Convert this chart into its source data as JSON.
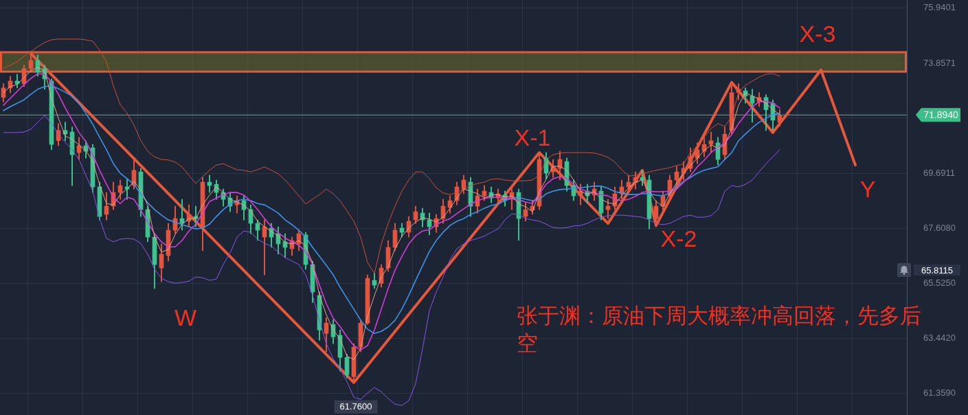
{
  "chart_data": {
    "type": "candlestick",
    "categories": [
      null,
      null,
      null,
      null,
      null,
      null,
      null,
      null,
      null,
      null,
      null,
      null,
      null,
      null,
      null,
      null,
      null,
      null,
      null,
      null,
      null,
      null,
      null,
      null,
      null,
      null,
      null,
      null,
      null,
      null,
      null,
      null,
      null,
      null,
      null,
      null,
      null,
      null,
      null,
      null,
      null,
      null,
      null,
      null,
      null,
      null,
      null,
      null,
      null,
      null,
      null,
      null,
      null,
      null,
      null,
      null,
      null,
      null,
      null,
      null,
      null,
      null,
      null,
      null,
      null,
      null,
      null,
      null,
      null,
      null,
      null,
      null,
      null,
      null,
      null,
      null,
      null,
      null,
      null,
      null,
      null,
      null,
      null,
      null,
      null,
      null,
      null,
      null,
      null,
      null,
      null,
      null,
      null,
      null,
      null,
      null,
      null,
      null,
      null,
      null,
      null,
      null,
      null,
      null,
      null,
      null,
      null,
      null,
      null,
      null,
      null,
      null,
      null,
      null,
      null,
      null,
      null,
      null,
      null,
      null,
      null,
      null,
      null,
      null,
      null,
      null,
      null,
      null,
      null,
      null,
      null,
      null
    ],
    "ohlc": [
      [
        72.56,
        73.08,
        72.39,
        72.92
      ],
      [
        72.92,
        73.36,
        72.74,
        73.18
      ],
      [
        73.18,
        73.44,
        72.92,
        73.08
      ],
      [
        73.08,
        73.78,
        72.97,
        73.65
      ],
      [
        73.65,
        74.22,
        73.52,
        73.96
      ],
      [
        73.96,
        74.17,
        73.36,
        73.52
      ],
      [
        73.65,
        73.78,
        72.87,
        73.26
      ],
      [
        73.18,
        73.26,
        70.58,
        70.78
      ],
      [
        70.92,
        71.57,
        70.73,
        71.31
      ],
      [
        71.31,
        71.62,
        70.92,
        71.17
      ],
      [
        71.25,
        71.44,
        69.22,
        70.39
      ],
      [
        70.47,
        71.05,
        70.21,
        70.73
      ],
      [
        70.73,
        70.92,
        70.26,
        70.52
      ],
      [
        70.65,
        70.78,
        68.96,
        69.17
      ],
      [
        69.17,
        69.35,
        67.92,
        68.05
      ],
      [
        68.13,
        68.96,
        67.92,
        68.44
      ],
      [
        68.44,
        69.35,
        68.31,
        68.96
      ],
      [
        68.96,
        69.43,
        68.7,
        69.22
      ],
      [
        69.17,
        69.48,
        68.7,
        69.09
      ],
      [
        69.22,
        70.18,
        69.09,
        69.8
      ],
      [
        69.74,
        69.87,
        68.05,
        68.31
      ],
      [
        68.31,
        68.44,
        67.09,
        67.27
      ],
      [
        67.27,
        67.4,
        65.32,
        66.23
      ],
      [
        66.1,
        67.01,
        65.58,
        66.62
      ],
      [
        66.57,
        67.79,
        66.36,
        67.53
      ],
      [
        67.53,
        68.44,
        67.4,
        67.97
      ],
      [
        67.97,
        68.7,
        67.53,
        67.79
      ],
      [
        67.87,
        68.49,
        67.66,
        68.13
      ],
      [
        68.05,
        68.44,
        67.66,
        67.97
      ],
      [
        67.66,
        69.53,
        66.75,
        69.35
      ],
      [
        69.35,
        69.61,
        68.96,
        69.22
      ],
      [
        69.27,
        69.43,
        68.7,
        68.96
      ],
      [
        68.96,
        69.09,
        68.44,
        68.7
      ],
      [
        68.75,
        68.96,
        68.23,
        68.44
      ],
      [
        68.49,
        68.83,
        68.18,
        68.65
      ],
      [
        68.65,
        68.83,
        67.92,
        68.31
      ],
      [
        68.31,
        68.49,
        67.4,
        67.79
      ],
      [
        67.79,
        67.92,
        67.14,
        67.53
      ],
      [
        67.27,
        67.92,
        65.84,
        67.66
      ],
      [
        67.61,
        67.79,
        66.88,
        67.27
      ],
      [
        67.4,
        67.66,
        66.62,
        67.01
      ],
      [
        67.09,
        67.4,
        66.49,
        66.88
      ],
      [
        66.83,
        67.27,
        66.57,
        67.14
      ],
      [
        67.01,
        67.53,
        66.75,
        67.4
      ],
      [
        67.35,
        67.45,
        66.05,
        66.23
      ],
      [
        66.23,
        66.36,
        64.79,
        65.19
      ],
      [
        65.06,
        65.19,
        63.36,
        63.75
      ],
      [
        63.62,
        64.22,
        62.92,
        64.01
      ],
      [
        63.96,
        64.14,
        63.23,
        63.49
      ],
      [
        63.55,
        63.75,
        62.19,
        62.71
      ],
      [
        62.71,
        62.84,
        61.93,
        62.06
      ],
      [
        61.98,
        63.23,
        61.76,
        63.1
      ],
      [
        63.1,
        64.14,
        62.92,
        64.01
      ],
      [
        64.01,
        65.84,
        63.96,
        65.71
      ],
      [
        65.63,
        65.89,
        65.32,
        65.45
      ],
      [
        65.52,
        66.23,
        65.37,
        66.1
      ],
      [
        66.1,
        67.14,
        65.97,
        66.88
      ],
      [
        66.88,
        67.79,
        66.75,
        67.53
      ],
      [
        67.61,
        67.79,
        67.27,
        67.45
      ],
      [
        67.45,
        68.05,
        67.27,
        67.87
      ],
      [
        67.92,
        68.44,
        67.79,
        68.23
      ],
      [
        68.18,
        68.36,
        67.66,
        67.92
      ],
      [
        67.92,
        68.18,
        67.35,
        67.66
      ],
      [
        67.66,
        68.13,
        67.45,
        67.97
      ],
      [
        67.97,
        68.7,
        67.79,
        68.44
      ],
      [
        68.39,
        68.83,
        68.18,
        68.65
      ],
      [
        68.65,
        69.35,
        68.49,
        69.17
      ],
      [
        69.09,
        69.61,
        68.91,
        69.43
      ],
      [
        69.35,
        69.53,
        68.05,
        68.44
      ],
      [
        68.44,
        69.09,
        68.18,
        68.83
      ],
      [
        68.83,
        69.22,
        68.65,
        69.01
      ],
      [
        68.96,
        69.17,
        68.57,
        68.75
      ],
      [
        68.75,
        69.09,
        68.49,
        68.91
      ],
      [
        68.86,
        69.01,
        68.44,
        68.65
      ],
      [
        68.7,
        69.22,
        68.31,
        68.96
      ],
      [
        68.96,
        69.09,
        67.14,
        67.97
      ],
      [
        68.05,
        68.57,
        67.87,
        68.31
      ],
      [
        68.29,
        68.65,
        68.13,
        68.44
      ],
      [
        68.44,
        70.47,
        68.31,
        70.21
      ],
      [
        70.26,
        70.47,
        69.48,
        69.69
      ],
      [
        69.74,
        70.21,
        69.53,
        69.95
      ],
      [
        69.87,
        70.52,
        69.43,
        70.21
      ],
      [
        70.13,
        70.26,
        69.01,
        69.22
      ],
      [
        69.22,
        69.43,
        68.65,
        68.83
      ],
      [
        68.83,
        69.27,
        68.49,
        69.01
      ],
      [
        69.01,
        69.27,
        68.57,
        68.83
      ],
      [
        68.86,
        69.35,
        68.65,
        69.09
      ],
      [
        69.01,
        69.17,
        67.92,
        68.18
      ],
      [
        68.31,
        68.7,
        67.97,
        68.44
      ],
      [
        68.44,
        69.17,
        68.31,
        68.91
      ],
      [
        68.91,
        69.43,
        68.7,
        69.17
      ],
      [
        69.17,
        69.61,
        68.96,
        69.35
      ],
      [
        69.33,
        69.74,
        69.09,
        69.53
      ],
      [
        69.53,
        69.8,
        69.22,
        69.43
      ],
      [
        69.43,
        69.61,
        67.58,
        67.97
      ],
      [
        67.97,
        68.65,
        67.66,
        68.44
      ],
      [
        68.44,
        69.01,
        68.18,
        68.83
      ],
      [
        68.83,
        69.61,
        68.7,
        69.43
      ],
      [
        69.43,
        69.95,
        69.22,
        69.74
      ],
      [
        69.69,
        70.13,
        69.43,
        69.87
      ],
      [
        69.87,
        70.65,
        69.74,
        70.31
      ],
      [
        70.26,
        70.84,
        70.05,
        70.58
      ],
      [
        70.52,
        71.17,
        70.31,
        70.78
      ],
      [
        70.78,
        71.25,
        70.47,
        70.92
      ],
      [
        70.84,
        71.05,
        70.0,
        70.21
      ],
      [
        70.39,
        71.44,
        70.21,
        71.17
      ],
      [
        71.31,
        73.0,
        71.17,
        72.74
      ],
      [
        72.74,
        73.08,
        72.47,
        72.87
      ],
      [
        72.81,
        72.92,
        72.34,
        72.61
      ],
      [
        72.61,
        72.87,
        71.62,
        72.34
      ],
      [
        72.39,
        72.74,
        72.21,
        72.56
      ],
      [
        72.56,
        72.66,
        71.31,
        72.09
      ],
      [
        72.34,
        72.47,
        71.31,
        71.7
      ],
      [
        71.62,
        72.09,
        71.46,
        71.89
      ],
      null,
      null,
      null,
      null,
      null,
      null,
      null,
      null,
      null,
      null,
      null,
      null,
      null,
      null,
      null,
      null,
      null,
      null
    ],
    "colors": [
      "#e4553f",
      "#e4553f",
      "#3ec28f",
      "#e4553f",
      "#e4553f",
      "#3ec28f",
      "#3ec28f",
      "#3ec28f",
      "#e4553f",
      "#3ec28f",
      "#3ec28f",
      "#e4553f",
      "#3ec28f",
      "#3ec28f",
      "#3ec28f",
      "#e4553f",
      "#e4553f",
      "#e4553f",
      "#3ec28f",
      "#e4553f",
      "#3ec28f",
      "#3ec28f",
      "#3ec28f",
      "#e4553f",
      "#e4553f",
      "#e4553f",
      "#3ec28f",
      "#e4553f",
      "#3ec28f",
      "#e4553f",
      "#3ec28f",
      "#3ec28f",
      "#3ec28f",
      "#3ec28f",
      "#e4553f",
      "#3ec28f",
      "#3ec28f",
      "#3ec28f",
      "#e4553f",
      "#3ec28f",
      "#3ec28f",
      "#3ec28f",
      "#e4553f",
      "#e4553f",
      "#3ec28f",
      "#3ec28f",
      "#3ec28f",
      "#e4553f",
      "#3ec28f",
      "#3ec28f",
      "#3ec28f",
      "#e4553f",
      "#e4553f",
      "#e4553f",
      "#3ec28f",
      "#e4553f",
      "#e4553f",
      "#e4553f",
      "#3ec28f",
      "#e4553f",
      "#e4553f",
      "#3ec28f",
      "#3ec28f",
      "#e4553f",
      "#e4553f",
      "#e4553f",
      "#e4553f",
      "#e4553f",
      "#3ec28f",
      "#e4553f",
      "#e4553f",
      "#3ec28f",
      "#e4553f",
      "#3ec28f",
      "#e4553f",
      "#3ec28f",
      "#e4553f",
      "#e4553f",
      "#e4553f",
      "#3ec28f",
      "#e4553f",
      "#e4553f",
      "#3ec28f",
      "#3ec28f",
      "#e4553f",
      "#3ec28f",
      "#e4553f",
      "#3ec28f",
      "#e4553f",
      "#e4553f",
      "#e4553f",
      "#e4553f",
      "#e4553f",
      "#3ec28f",
      "#3ec28f",
      "#e4553f",
      "#e4553f",
      "#e4553f",
      "#e4553f",
      "#e4553f",
      "#e4553f",
      "#e4553f",
      "#e4553f",
      "#e4553f",
      "#3ec28f",
      "#e4553f",
      "#e4553f",
      "#e4553f",
      "#3ec28f",
      "#3ec28f",
      "#e4553f",
      "#3ec28f",
      "#3ec28f",
      "#e4553f",
      null,
      null,
      null,
      null,
      null,
      null,
      null,
      null,
      null,
      null,
      null,
      null,
      null,
      null,
      null,
      null,
      null,
      null
    ],
    "series": [
      {
        "type": "line",
        "color": "#c9503a",
        "values": [
          73.65,
          73.78,
          73.91,
          74.12,
          74.3,
          74.48,
          74.64,
          74.74,
          74.77,
          74.77,
          74.77,
          74.77,
          74.74,
          74.69,
          74.35,
          73.91,
          73.0,
          72.29,
          71.96,
          71.51,
          70.92,
          70.52,
          70.31,
          70.21,
          70.19,
          70.11,
          69.93,
          69.61,
          69.3,
          69.56,
          69.8,
          70.0,
          70.05,
          69.93,
          69.82,
          69.8,
          69.74,
          69.82,
          69.93,
          69.8,
          69.67,
          69.43,
          69.14,
          68.83,
          68.52,
          68.7,
          68.88,
          69.09,
          68.91,
          68.65,
          68.26,
          67.87,
          67.27,
          66.31,
          65.89,
          67.01,
          67.79,
          68.44,
          69.01,
          69.43,
          69.74,
          69.74,
          69.48,
          69.14,
          68.94,
          68.88,
          68.96,
          69.09,
          69.22,
          69.3,
          69.35,
          69.46,
          69.48,
          69.43,
          69.4,
          69.4,
          69.4,
          69.43,
          69.61,
          70.21,
          70.39,
          70.45,
          70.47,
          70.47,
          70.47,
          70.47,
          70.45,
          70.39,
          70.29,
          70.11,
          69.82,
          69.58,
          69.61,
          69.67,
          69.74,
          69.8,
          69.85,
          69.9,
          69.98,
          70.05,
          70.47,
          70.73,
          71.05,
          71.38,
          71.57,
          71.46,
          71.83,
          72.74,
          73.02,
          73.18,
          73.33,
          73.44,
          73.46,
          73.36,
          null,
          null,
          null,
          null,
          null,
          null,
          null,
          null,
          null,
          null,
          null,
          null,
          null,
          null,
          null,
          null,
          null,
          null
        ]
      },
      {
        "type": "line",
        "color": "#8a55e6",
        "values": [
          71.23,
          71.23,
          71.23,
          71.25,
          71.36,
          71.62,
          71.88,
          71.57,
          71.17,
          70.86,
          70.58,
          70.21,
          69.61,
          69.01,
          67.97,
          67.22,
          67.09,
          67.19,
          67.22,
          67.19,
          67.03,
          66.62,
          66.05,
          65.71,
          65.58,
          65.52,
          65.55,
          65.6,
          65.76,
          65.73,
          65.63,
          65.68,
          66.23,
          66.67,
          67.27,
          67.5,
          67.45,
          67.19,
          67.03,
          66.93,
          66.7,
          66.49,
          66.36,
          66.23,
          65.84,
          65.06,
          64.09,
          63.23,
          62.66,
          62.27,
          61.8,
          61.2,
          61.12,
          61.36,
          61.57,
          61.41,
          61.15,
          60.94,
          60.89,
          61.07,
          61.72,
          63.03,
          64.48,
          65.19,
          65.76,
          66.41,
          66.83,
          67.01,
          67.14,
          67.22,
          67.3,
          67.45,
          67.58,
          67.92,
          68.15,
          68.13,
          67.97,
          67.92,
          67.87,
          67.76,
          67.63,
          67.61,
          67.63,
          67.69,
          67.71,
          67.79,
          67.92,
          68.02,
          68.08,
          68.1,
          68.1,
          68.08,
          68.05,
          68.02,
          67.92,
          67.79,
          67.74,
          67.79,
          67.92,
          68.05,
          68.1,
          68.02,
          68.02,
          68.08,
          68.31,
          69.01,
          69.22,
          69.17,
          69.27,
          69.43,
          69.74,
          70.05,
          70.31,
          70.58,
          null,
          null,
          null,
          null,
          null,
          null,
          null,
          null,
          null,
          null,
          null,
          null,
          null,
          null,
          null,
          null,
          null,
          null
        ]
      },
      {
        "type": "line",
        "color": "#3f93e6",
        "values": [
          72.06,
          72.21,
          72.34,
          72.47,
          72.68,
          72.87,
          72.97,
          73.0,
          72.89,
          72.76,
          72.61,
          72.34,
          71.96,
          71.54,
          71.05,
          70.58,
          70.05,
          69.69,
          69.48,
          69.27,
          68.91,
          68.57,
          68.31,
          68.1,
          67.92,
          67.84,
          67.74,
          67.66,
          67.58,
          67.61,
          67.76,
          68.05,
          68.31,
          68.52,
          68.65,
          68.7,
          68.65,
          68.54,
          68.49,
          68.34,
          68.18,
          67.92,
          67.74,
          67.53,
          67.27,
          66.88,
          66.54,
          66.2,
          65.84,
          65.37,
          64.95,
          64.54,
          64.12,
          63.78,
          63.62,
          63.7,
          63.86,
          64.12,
          64.54,
          65.06,
          65.63,
          66.18,
          66.72,
          67.14,
          67.45,
          67.71,
          67.87,
          67.97,
          68.13,
          68.23,
          68.36,
          68.47,
          68.52,
          68.65,
          68.75,
          68.78,
          68.7,
          68.65,
          68.7,
          68.91,
          69.01,
          69.07,
          69.09,
          69.12,
          69.14,
          69.17,
          69.2,
          69.2,
          69.12,
          68.99,
          68.94,
          68.88,
          68.88,
          68.91,
          68.91,
          68.86,
          68.83,
          68.96,
          69.17,
          69.38,
          69.53,
          69.69,
          69.8,
          69.87,
          69.93,
          70.21,
          70.47,
          70.92,
          71.17,
          71.41,
          71.62,
          71.77,
          71.9,
          71.96,
          null,
          null,
          null,
          null,
          null,
          null,
          null,
          null,
          null,
          null,
          null,
          null,
          null,
          null,
          null,
          null,
          null,
          null
        ]
      },
      {
        "type": "line",
        "color": "#d63cd6",
        "values": [
          72.26,
          72.53,
          72.79,
          73.05,
          73.28,
          73.46,
          73.44,
          73.13,
          72.68,
          72.16,
          71.7,
          71.23,
          70.89,
          70.39,
          69.8,
          69.27,
          68.78,
          68.54,
          68.78,
          68.7,
          68.29,
          67.84,
          67.4,
          67.09,
          66.9,
          66.9,
          67.14,
          67.5,
          67.76,
          68.18,
          68.62,
          68.75,
          68.88,
          68.96,
          68.96,
          68.86,
          68.62,
          68.31,
          67.97,
          67.66,
          67.43,
          67.24,
          67.09,
          66.96,
          66.72,
          66.23,
          65.45,
          64.74,
          64.2,
          63.88,
          63.49,
          63.16,
          63.0,
          63.16,
          63.75,
          64.54,
          65.32,
          66.02,
          66.54,
          67.01,
          67.32,
          67.5,
          67.55,
          67.74,
          67.87,
          67.97,
          68.16,
          68.34,
          68.52,
          68.65,
          68.73,
          68.78,
          68.78,
          68.75,
          68.73,
          68.68,
          68.6,
          68.54,
          68.91,
          69.27,
          69.48,
          69.56,
          69.48,
          69.27,
          69.09,
          68.99,
          68.94,
          68.88,
          68.83,
          68.7,
          68.65,
          68.7,
          68.81,
          68.96,
          69.01,
          68.99,
          68.99,
          69.01,
          69.09,
          69.35,
          69.59,
          69.93,
          70.18,
          70.47,
          70.68,
          70.84,
          71.15,
          71.57,
          71.9,
          72.21,
          72.39,
          72.42,
          72.34,
          72.16,
          null,
          null,
          null,
          null,
          null,
          null,
          null,
          null,
          null,
          null,
          null,
          null,
          null,
          null,
          null,
          null,
          null,
          null
        ]
      },
      {
        "type": "line",
        "color": "#e6a08a",
        "values": [
          72.74,
          72.97,
          73.05,
          73.31,
          73.57,
          73.7,
          73.57,
          72.53,
          71.77,
          71.1,
          70.97,
          70.76,
          70.55,
          70.13,
          69.25,
          68.54,
          68.49,
          68.88,
          69.09,
          69.38,
          69.07,
          68.47,
          67.27,
          66.7,
          66.8,
          67.37,
          67.76,
          67.97,
          67.97,
          68.49,
          68.86,
          69.17,
          68.96,
          68.7,
          68.6,
          68.47,
          68.26,
          67.87,
          67.66,
          67.48,
          67.32,
          67.06,
          67.01,
          67.14,
          66.93,
          66.28,
          65.06,
          64.33,
          63.75,
          63.42,
          62.76,
          62.63,
          63.05,
          64.27,
          65.06,
          65.76,
          66.15,
          66.83,
          67.3,
          67.61,
          67.84,
          68.0,
          67.95,
          67.84,
          68.02,
          68.36,
          68.75,
          69.09,
          69.01,
          68.91,
          68.75,
          68.86,
          68.88,
          68.78,
          68.83,
          68.52,
          68.42,
          68.23,
          68.99,
          69.46,
          69.95,
          69.95,
          69.8,
          69.43,
          69.01,
          68.88,
          68.99,
          68.7,
          68.57,
          68.52,
          68.83,
          69.14,
          69.35,
          69.43,
          68.99,
          68.62,
          68.42,
          68.91,
          69.33,
          69.69,
          69.98,
          70.26,
          70.55,
          70.76,
          70.63,
          70.76,
          71.38,
          72.26,
          72.74,
          72.61,
          72.5,
          72.32,
          72.11,
          71.9,
          null,
          null,
          null,
          null,
          null,
          null,
          null,
          null,
          null,
          null,
          null,
          null,
          null,
          null,
          null,
          null,
          null,
          null
        ]
      },
      {
        "type": "line",
        "color": "#e4583b",
        "values": [
          null,
          null,
          null,
          null,
          74.22,
          null,
          null,
          null,
          null,
          null,
          null,
          null,
          null,
          null,
          null,
          null,
          null,
          null,
          null,
          null,
          null,
          null,
          null,
          null,
          null,
          null,
          null,
          null,
          null,
          null,
          null,
          null,
          null,
          null,
          null,
          null,
          null,
          null,
          null,
          null,
          null,
          null,
          null,
          null,
          null,
          null,
          null,
          null,
          null,
          null,
          null,
          61.76,
          null,
          null,
          null,
          null,
          null,
          null,
          null,
          null,
          null,
          null,
          null,
          null,
          null,
          null,
          null,
          null,
          null,
          null,
          null,
          null,
          null,
          null,
          null,
          null,
          null,
          null,
          70.47,
          null,
          null,
          null,
          null,
          null,
          null,
          null,
          null,
          null,
          67.79,
          null,
          null,
          null,
          null,
          69.8,
          null,
          67.71,
          null,
          null,
          null,
          null,
          null,
          null,
          null,
          null,
          null,
          null,
          73.13,
          null,
          null,
          null,
          null,
          null,
          71.23,
          null,
          null,
          null,
          null,
          null,
          null,
          73.6,
          null,
          null,
          null,
          null,
          70.0,
          null,
          null,
          null,
          null,
          null,
          null,
          null
        ]
      }
    ],
    "ylim": [
      60.53,
      76.25
    ],
    "yticks": [
      75.9401,
      73.8571,
      {
        "value": 71.7741,
        "label": null
      },
      69.6911,
      {
        "value": 67.608,
        "label": "67.6080"
      },
      {
        "value": 65.525,
        "label": "65.5250"
      },
      {
        "value": 63.442,
        "label": "63.4420"
      },
      {
        "value": 61.359,
        "label": "61.3590"
      }
    ],
    "grid": true,
    "tick_labels": "y",
    "ref_lines": [
      {
        "axis": "y",
        "value": 71.894,
        "label": "71.8940",
        "color": "#3dbf8a"
      }
    ],
    "bands": [
      {
        "axis": "y",
        "from": 73.54,
        "to": 74.27,
        "color": "#5c5c2c"
      }
    ],
    "annotations": [
      "W",
      "X-1",
      "X-2",
      "X-3",
      "Y",
      "张于渊：原油下周大概率冲高回落，先多后空",
      {
        "text": "61.7600",
        "y": 61.76
      },
      "65.8115"
    ]
  }
}
